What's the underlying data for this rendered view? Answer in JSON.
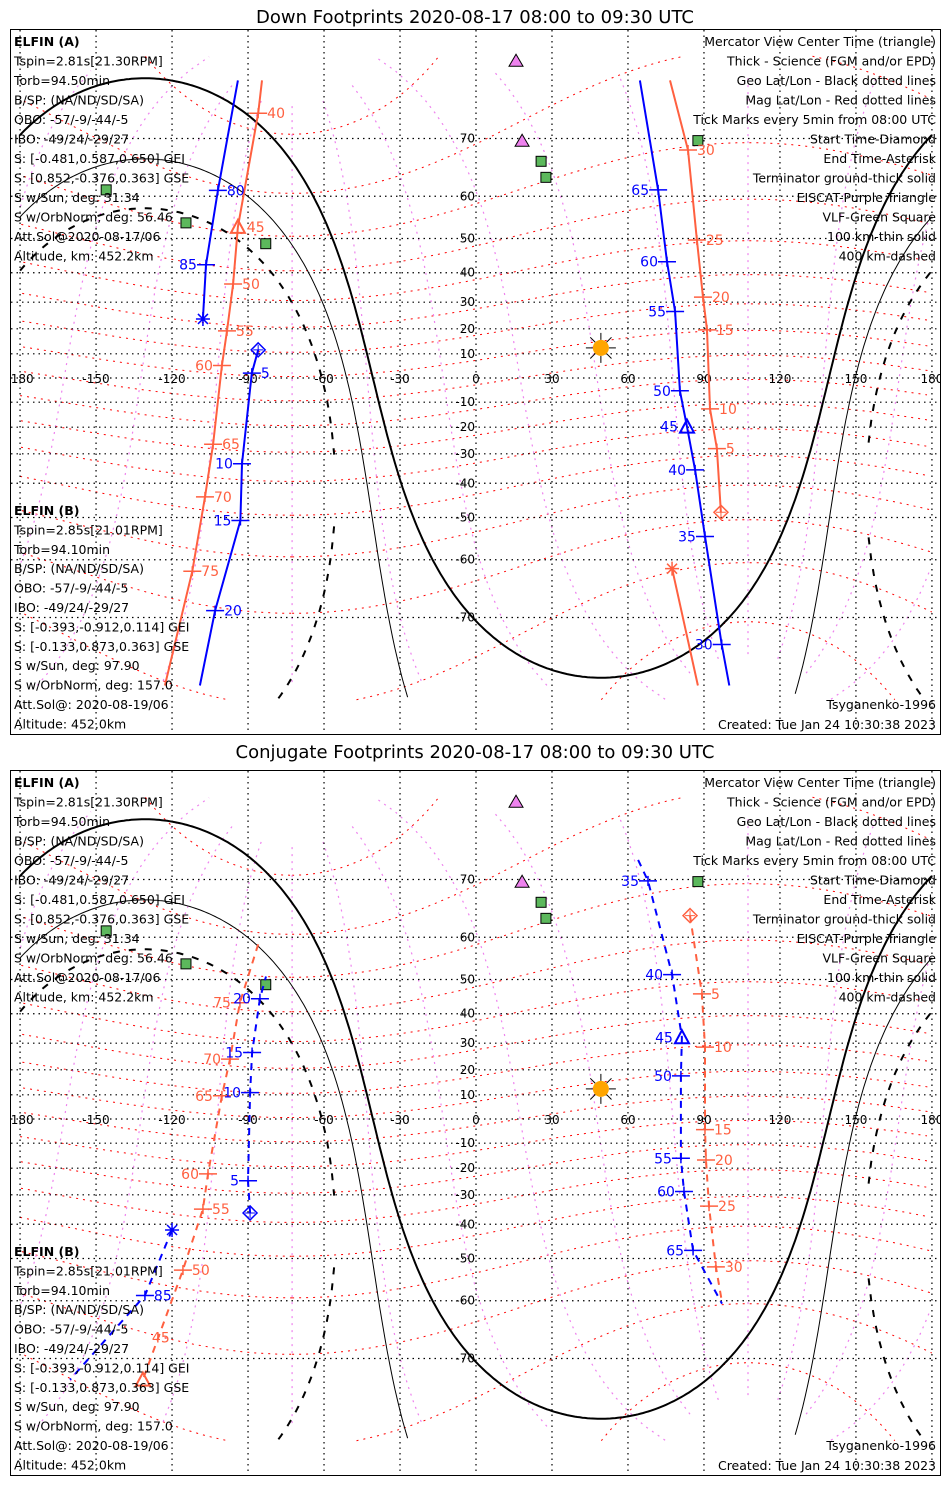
{
  "chart_data": {
    "type": "map-footprints",
    "projection": "mercator",
    "lon_ticks": [
      -180,
      -150,
      -120,
      -90,
      -60,
      -30,
      0,
      30,
      60,
      90,
      120,
      150,
      180
    ],
    "lat_ticks": [
      70,
      60,
      50,
      40,
      30,
      20,
      10,
      -10,
      -20,
      -30,
      -40,
      -50,
      -60,
      -70
    ],
    "lon_tick_labels": [
      "-180",
      "-150",
      "-120",
      "-90",
      "-60",
      "-30",
      "0",
      "30",
      "60",
      "90",
      "120",
      "150",
      "180"
    ],
    "lat_tick_labels": [
      "70",
      "60",
      "50",
      "40",
      "30",
      "20",
      "10",
      "-10",
      "-20",
      "-30",
      "-40",
      "-50",
      "-60",
      "-70"
    ],
    "colors": {
      "elfin_a": "#0000ff",
      "elfin_b": "#ff6040",
      "mag_grid": "#ff0000",
      "mag_meridian": "#ee82ee",
      "eiscat": "#ee82ee",
      "vlf": "#5cb85c",
      "sun": "#ffa500"
    },
    "sun": {
      "lon": 49.3,
      "lat": 12.4,
      "declination": 13
    },
    "terminators": [
      {
        "name": "ground",
        "depression_deg": 0,
        "style": "thick"
      },
      {
        "name": "100 km",
        "depression_deg": 10.1,
        "style": "thin"
      },
      {
        "name": "400 km",
        "depression_deg": 19.6,
        "style": "dashed"
      }
    ],
    "eiscat_sites": [
      {
        "lon": 15.8,
        "lat": 78.5
      },
      {
        "lon": 18.2,
        "lat": 69.6
      }
    ],
    "vlf_sites": [
      {
        "lon": 25.7,
        "lat": 66.5
      },
      {
        "lon": 27.6,
        "lat": 63.7
      },
      {
        "lon": 87.6,
        "lat": 69.7
      },
      {
        "lon": -146,
        "lat": 61.3
      },
      {
        "lon": -114.5,
        "lat": 54
      },
      {
        "lon": -83,
        "lat": 48.6
      }
    ],
    "panels": [
      {
        "title": "Down Footprints 2020-08-17 08:00 to 09:30 UTC",
        "dashed": false,
        "tracks": [
          {
            "name": "ELFIN A",
            "color": "#0000ff",
            "label_side": "left",
            "segments": [
              [
                [
                  -86,
                  11.6
                ],
                [
                  -88.5,
                  2
                ],
                [
                  -92.4,
                  -33.5
                ],
                [
                  -93,
                  -50.8
                ],
                [
                  -103,
                  -69
                ],
                [
                  -109,
                  -77.7
                ]
              ],
              [
                [
                  100,
                  -77.7
                ],
                [
                  97,
                  -73.5
                ],
                [
                  90.4,
                  -54.8
                ],
                [
                  86.5,
                  -35.6
                ],
                [
                  83.3,
                  -19.8
                ],
                [
                  80.5,
                  -5.3
                ],
                [
                  78.6,
                  26.6
                ],
                [
                  75.4,
                  43.4
                ],
                [
                  71.9,
                  61.3
                ],
                [
                  64.7,
                  76.8
                ]
              ],
              [
                [
                  -94,
                  76.8
                ],
                [
                  -101.9,
                  61.2
                ],
                [
                  -106.6,
                  42.5
                ],
                [
                  -107.8,
                  23.8
                ]
              ]
            ],
            "ticks": [
              {
                "label": "5",
                "lon": -88.5,
                "lat": 2
              },
              {
                "label": "10",
                "lon": -92.4,
                "lat": -33.5
              },
              {
                "label": "15",
                "lon": -93,
                "lat": -50.8
              },
              {
                "label": "20",
                "lon": -103,
                "lat": -69
              },
              {
                "label": "30",
                "lon": 97,
                "lat": -73.5
              },
              {
                "label": "35",
                "lon": 90.4,
                "lat": -54.8
              },
              {
                "label": "40",
                "lon": 86.5,
                "lat": -35.6
              },
              {
                "label": "45",
                "lon": 83.3,
                "lat": -19.8,
                "center": true
              },
              {
                "label": "50",
                "lon": 80.5,
                "lat": -5.3
              },
              {
                "label": "55",
                "lon": 78.6,
                "lat": 26.6
              },
              {
                "label": "60",
                "lon": 75.4,
                "lat": 43.4
              },
              {
                "label": "65",
                "lon": 71.9,
                "lat": 61.3
              },
              {
                "label": "80",
                "lon": -101.9,
                "lat": 61.2
              },
              {
                "label": "85",
                "lon": -106.6,
                "lat": 42.5
              }
            ],
            "start": {
              "lon": -86,
              "lat": 11.6
            },
            "end": {
              "lon": -107.8,
              "lat": 23.8
            }
          },
          {
            "name": "ELFIN B",
            "color": "#ff6040",
            "label_side": "right",
            "segments": [
              [
                [
                  -84.5,
                  76.8
                ],
                [
                  -86,
                  73.3
                ],
                [
                  -94,
                  53
                ],
                [
                  -95.9,
                  36.3
                ],
                [
                  -98.3,
                  19.2
                ],
                [
                  -100.3,
                  5.2
                ],
                [
                  -103.8,
                  -26.5
                ],
                [
                  -107,
                  -44.2
                ],
                [
                  -112,
                  -62.3
                ],
                [
                  -122.8,
                  -77.7
                ]
              ],
              [
                [
                  76.6,
                  76.8
                ],
                [
                  83.7,
                  68.3
                ],
                [
                  87.2,
                  49.6
                ],
                [
                  89.6,
                  31.8
                ],
                [
                  91.2,
                  19.6
                ],
                [
                  92.4,
                  -12.7
                ],
                [
                  95.1,
                  -28.1
                ],
                [
                  96.7,
                  -48.6
                ]
              ],
              [
                [
                  77.4,
                  -61.8
                ],
                [
                  87.6,
                  -77.7
                ]
              ]
            ],
            "ticks": [
              {
                "label": "40",
                "lon": -86,
                "lat": 73.3
              },
              {
                "label": "45",
                "lon": -94,
                "lat": 53,
                "center": true
              },
              {
                "label": "50",
                "lon": -95.9,
                "lat": 36.3
              },
              {
                "label": "55",
                "lon": -98.3,
                "lat": 19.2
              },
              {
                "label": "60",
                "lon": -100.3,
                "lat": 5.2
              },
              {
                "label": "65",
                "lon": -103.8,
                "lat": -26.5
              },
              {
                "label": "70",
                "lon": -107,
                "lat": -44.2
              },
              {
                "label": "75",
                "lon": -112,
                "lat": -62.3
              },
              {
                "label": "30",
                "lon": 83.7,
                "lat": 68.3
              },
              {
                "label": "25",
                "lon": 87.2,
                "lat": 49.6
              },
              {
                "label": "20",
                "lon": 89.6,
                "lat": 31.8
              },
              {
                "label": "15",
                "lon": 91.2,
                "lat": 19.6
              },
              {
                "label": "10",
                "lon": 92.4,
                "lat": -12.7
              },
              {
                "label": "5",
                "lon": 95.1,
                "lat": -28.1
              }
            ],
            "start": {
              "lon": 96.7,
              "lat": -48.6
            },
            "end": {
              "lon": 77.4,
              "lat": -61.8
            }
          }
        ]
      },
      {
        "title": "Conjugate Footprints 2020-08-17 08:00 to 09:30 UTC",
        "dashed": true,
        "tracks": [
          {
            "name": "ELFIN A",
            "color": "#0000ff",
            "label_side": "left",
            "segments": [
              [
                [
                  -89.2,
                  -36.3
                ],
                [
                  -90,
                  -24.8
                ],
                [
                  -89.2,
                  10.9
                ],
                [
                  -88.4,
                  26.6
                ],
                [
                  -85.3,
                  44.6
                ],
                [
                  -82.9,
                  50.8
                ]
              ],
              [
                [
                  64,
                  72.6
                ],
                [
                  67.9,
                  69.8
                ],
                [
                  77.4,
                  51.3
                ],
                [
                  81.3,
                  32.1
                ],
                [
                  80.9,
                  17.6
                ],
                [
                  80.9,
                  -16.1
                ],
                [
                  82.1,
                  -28.8
                ],
                [
                  85.7,
                  -47.8
                ],
                [
                  97.1,
                  -60.6
                ]
              ],
              [
                [
                  -120,
                  -41.8
                ],
                [
                  -130.7,
                  -58.9
                ],
                [
                  -160.3,
                  -72.8
                ]
              ]
            ],
            "ticks": [
              {
                "label": "5",
                "lon": -90,
                "lat": -24.8
              },
              {
                "label": "10",
                "lon": -89.2,
                "lat": 10.9
              },
              {
                "label": "15",
                "lon": -88.4,
                "lat": 26.6
              },
              {
                "label": "20",
                "lon": -85.3,
                "lat": 44.6
              },
              {
                "label": "35",
                "lon": 67.9,
                "lat": 69.8
              },
              {
                "label": "40",
                "lon": 77.4,
                "lat": 51.3
              },
              {
                "label": "45",
                "lon": 81.3,
                "lat": 32.1,
                "center": true
              },
              {
                "label": "50",
                "lon": 80.9,
                "lat": 17.6
              },
              {
                "label": "55",
                "lon": 80.9,
                "lat": -16.1
              },
              {
                "label": "60",
                "lon": 82.1,
                "lat": -28.8
              },
              {
                "label": "65",
                "lon": 85.7,
                "lat": -47.8
              },
              {
                "label": "85",
                "lon": -130.7,
                "lat": -58.9
              }
            ],
            "start": {
              "lon": -89.2,
              "lat": -36.3
            },
            "end": {
              "lon": -120,
              "lat": -41.8
            }
          },
          {
            "name": "ELFIN B",
            "color": "#ff6040",
            "label_side": "right",
            "segments": [
              [
                [
                  84.5,
                  64.2
                ],
                [
                  89.2,
                  46
                ],
                [
                  90.4,
                  28.6
                ],
                [
                  90.4,
                  -4.4
                ],
                [
                  90.8,
                  -16.8
                ],
                [
                  92,
                  -34
                ],
                [
                  94.7,
                  -52.2
                ],
                [
                  97.1,
                  -60.3
                ]
              ],
              [
                [
                  -86,
                  58.5
                ],
                [
                  -93.2,
                  43.4
                ],
                [
                  -97.1,
                  24.1
                ],
                [
                  -100.3,
                  9.6
                ],
                [
                  -105.8,
                  -22.2
                ],
                [
                  -107.8,
                  -35
                ],
                [
                  -115.7,
                  -53
                ],
                [
                  -131.5,
                  -72.8
                ]
              ]
            ],
            "ticks": [
              {
                "label": "5",
                "lon": 89.2,
                "lat": 46
              },
              {
                "label": "10",
                "lon": 90.4,
                "lat": 28.6
              },
              {
                "label": "15",
                "lon": 90.4,
                "lat": -4.4
              },
              {
                "label": "20",
                "lon": 90.8,
                "lat": -16.8
              },
              {
                "label": "25",
                "lon": 92,
                "lat": -34
              },
              {
                "label": "30",
                "lon": 94.7,
                "lat": -52.2
              },
              {
                "label": "75",
                "lon": -93.2,
                "lat": 43.4
              },
              {
                "label": "70",
                "lon": -97.1,
                "lat": 24.1
              },
              {
                "label": "65",
                "lon": -100.3,
                "lat": 9.6
              },
              {
                "label": "60",
                "lon": -105.8,
                "lat": -22.2
              },
              {
                "label": "55",
                "lon": -107.8,
                "lat": -35
              },
              {
                "label": "50",
                "lon": -115.7,
                "lat": -53
              },
              {
                "label": "45",
                "lon": -131.5,
                "lat": -72.8,
                "center": true
              }
            ],
            "start": {
              "lon": 84.5,
              "lat": 64.2
            },
            "end": null
          }
        ]
      }
    ]
  },
  "info_a": [
    "ELFIN (A)",
    "Tspin=2.81s[21.30RPM]",
    "Torb=94.50min",
    "B/SP: (NA/ND/SD/SA)",
    "OBO: -57/-9/-44/-5",
    "IBO: -49/24/-29/27",
    "S: [-0.481,0.587,0.650] GEI",
    "S: [0.852,-0.376,0.363] GSE",
    "S w/Sun, deg: 31.34",
    "S w/OrbNorm, deg: 56.46",
    "Att.Sol@2020-08-17/06",
    "Altitude, km: 452.2km"
  ],
  "info_b": [
    "ELFIN (B)",
    "Tspin=2.85s[21.01RPM]",
    "Torb=94.10min",
    "B/SP: (NA/ND/SD/SA)",
    "OBO: -57/-9/-44/-5",
    "IBO: -49/24/-29/27",
    "S: [-0.393,-0.912,0.114] GEI",
    "S: [-0.133,0.873,0.363] GSE",
    "S w/Sun, deg: 97.90",
    "S w/OrbNorm, deg: 157.0",
    "Att.Sol@: 2020-08-19/06",
    "Altitude: 452.0km"
  ],
  "legend": [
    {
      "text": "Mercator View Center Time (triangle)",
      "color": "#000000"
    },
    {
      "text": "Thick - Science (FGM and/or EPD)",
      "color": "#000000"
    },
    {
      "text": "Geo Lat/Lon - Black dotted lines",
      "color": "#000000"
    },
    {
      "text": "Mag Lat/Lon - Red dotted lines",
      "color": "#ff0000"
    },
    {
      "text": "Tick Marks every 5min from 08:00 UTC",
      "color": "#000000"
    },
    {
      "text": "Start Time-Diamond",
      "color": "#000000"
    },
    {
      "text": "End Time-Asterisk",
      "color": "#000000"
    },
    {
      "text": "Terminator ground-thick solid",
      "color": "#000000"
    },
    {
      "text": "EISCAT-Purple Triangle",
      "color": "#ee82ee"
    },
    {
      "text": "VLF-Green Square",
      "color": "#5cb85c"
    },
    {
      "text": "100 km-thin solid",
      "color": "#000000"
    },
    {
      "text": "400 km-dashed",
      "color": "#000000"
    }
  ],
  "footer": {
    "model": "Tsyganenko-1996",
    "created": "Created: Tue Jan 24 10:30:38 2023"
  }
}
